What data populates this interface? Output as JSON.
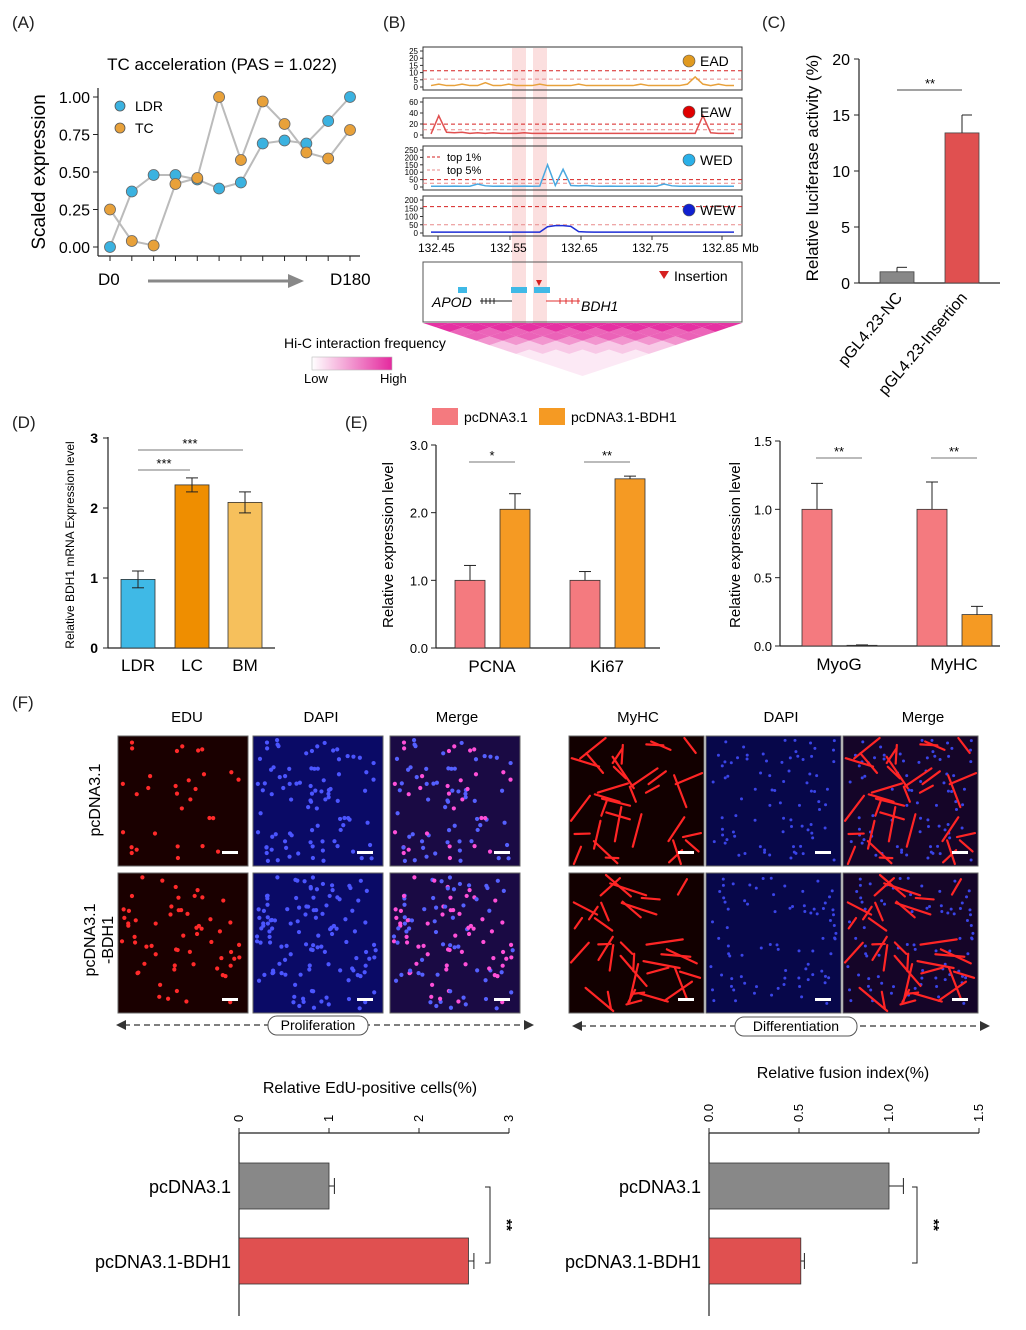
{
  "panel_labels": [
    "(A)",
    "(B)",
    "(C)",
    "(D)",
    "(E)",
    "(F)"
  ],
  "colors": {
    "ldr": "#3bb2e0",
    "tc": "#e8a13a",
    "grey": "#888888",
    "red": "#e05050",
    "pink": "#f47a7f",
    "orange": "#f59a23",
    "blue": "#3fb9e6",
    "lc": "#ef8e00",
    "bm": "#f6c05c",
    "dark_blue": "#1f2fd6",
    "hic": "#e4299e"
  },
  "chart_data": [
    {
      "type": "line",
      "panel": "A",
      "title": "TC acceleration (PAS = 1.022)",
      "xlabel": "",
      "ylabel": "Scaled expression",
      "x_start_label": "D0",
      "x_end_label": "D180",
      "ylim": [
        0,
        1.0
      ],
      "y_ticks": [
        "0.00",
        "0.25",
        "0.50",
        "0.75",
        "1.00"
      ],
      "legend": "top-left",
      "series": [
        {
          "name": "LDR",
          "values": [
            0.0,
            0.37,
            0.48,
            0.48,
            0.45,
            0.39,
            0.43,
            0.69,
            0.71,
            0.69,
            0.84,
            1.0
          ]
        },
        {
          "name": "TC",
          "values": [
            0.25,
            0.04,
            0.01,
            0.42,
            0.46,
            1.0,
            0.58,
            0.97,
            0.82,
            0.63,
            0.59,
            0.78
          ]
        }
      ]
    },
    {
      "type": "line",
      "panel": "B",
      "xlabel": "Mb",
      "x_ticks": [
        "132.45",
        "132.55",
        "132.65",
        "132.75",
        "132.85 Mb"
      ],
      "legend_lines": [
        "top 1%",
        "top 5%"
      ],
      "tracks": [
        {
          "name": "EAD",
          "y_ticks": [
            "0",
            "5",
            "10",
            "15",
            "20",
            "25"
          ],
          "ymax": 25,
          "values": [
            1,
            2,
            1,
            1,
            2,
            1,
            1,
            3,
            1,
            1,
            2,
            1,
            1,
            1,
            2,
            1,
            1,
            1,
            1,
            2,
            1,
            1,
            1,
            1,
            1,
            1,
            1,
            2,
            1,
            1,
            1,
            1,
            1,
            2,
            7,
            2,
            1,
            2,
            1,
            1
          ]
        },
        {
          "name": "EAW",
          "y_ticks": [
            "0",
            "20",
            "40",
            "60"
          ],
          "ymax": 60,
          "values": [
            2,
            35,
            5,
            4,
            5,
            3,
            4,
            3,
            4,
            3,
            3,
            3,
            4,
            3,
            3,
            3,
            3,
            3,
            3,
            3,
            3,
            3,
            3,
            3,
            3,
            3,
            3,
            3,
            3,
            3,
            3,
            3,
            3,
            3,
            3,
            35,
            4,
            3,
            3,
            3
          ]
        },
        {
          "name": "WED",
          "y_ticks": [
            "0",
            "50",
            "100",
            "150",
            "200",
            "250"
          ],
          "ymax": 250,
          "values": [
            5,
            5,
            5,
            6,
            5,
            5,
            20,
            8,
            5,
            6,
            5,
            5,
            6,
            5,
            6,
            150,
            10,
            120,
            10,
            8,
            10,
            6,
            5,
            6,
            5,
            5,
            5,
            6,
            5,
            5,
            20,
            8,
            5,
            5,
            6,
            5,
            5,
            5,
            5,
            5
          ]
        },
        {
          "name": "WEW",
          "y_ticks": [
            "0",
            "50",
            "100",
            "150",
            "200"
          ],
          "ymax": 200,
          "values": [
            5,
            5,
            5,
            5,
            5,
            5,
            5,
            5,
            5,
            5,
            5,
            5,
            5,
            5,
            5,
            38,
            45,
            45,
            40,
            8,
            6,
            5,
            5,
            5,
            5,
            5,
            5,
            5,
            5,
            5,
            5,
            5,
            5,
            5,
            5,
            5,
            5,
            5,
            5,
            5
          ]
        }
      ],
      "genes": [
        "APOD",
        "BDH1"
      ],
      "insertion_label": "Insertion",
      "hic_title": "Hi-C interaction frequency",
      "hic_low": "Low",
      "hic_high": "High"
    },
    {
      "type": "bar",
      "panel": "C",
      "ylabel": "Relative luciferase activity (%)",
      "categories": [
        "pGL4.23-NC",
        "pGL4.23-Insertion"
      ],
      "values": [
        1.0,
        13.4
      ],
      "errors": [
        0.4,
        1.6
      ],
      "ylim": [
        0,
        20
      ],
      "y_ticks": [
        "0",
        "5",
        "10",
        "15",
        "20"
      ],
      "significance": "**"
    },
    {
      "type": "bar",
      "panel": "D",
      "ylabel": "Relative BDH1 mRNA Expression level",
      "categories": [
        "LDR",
        "LC",
        "BM"
      ],
      "values": [
        0.98,
        2.33,
        2.08
      ],
      "errors": [
        0.12,
        0.1,
        0.15
      ],
      "ylim": [
        0,
        3
      ],
      "y_ticks": [
        "0",
        "1",
        "2",
        "3"
      ],
      "significance": [
        "***",
        "***"
      ]
    },
    {
      "type": "bar",
      "panel": "E",
      "legend": [
        "pcDNA3.1",
        "pcDNA3.1-BDH1"
      ],
      "ylabel": "Relative expression level",
      "groups": [
        {
          "categories": [
            "PCNA",
            "Ki67"
          ],
          "ylim": [
            0,
            3.0
          ],
          "y_ticks": [
            "0.0",
            "1.0",
            "2.0",
            "3.0"
          ],
          "series": [
            {
              "name": "pcDNA3.1",
              "values": [
                1.0,
                1.0
              ],
              "errors": [
                0.22,
                0.13
              ]
            },
            {
              "name": "pcDNA3.1-BDH1",
              "values": [
                2.05,
                2.5
              ],
              "errors": [
                0.23,
                0.04
              ]
            }
          ],
          "significance": [
            "*",
            "**"
          ]
        },
        {
          "categories": [
            "MyoG",
            "MyHC"
          ],
          "ylim": [
            0,
            1.5
          ],
          "y_ticks": [
            "0.0",
            "0.5",
            "1.0",
            "1.5"
          ],
          "series": [
            {
              "name": "pcDNA3.1",
              "values": [
                1.0,
                1.0
              ],
              "errors": [
                0.19,
                0.2
              ]
            },
            {
              "name": "pcDNA3.1-BDH1",
              "values": [
                0.005,
                0.23
              ],
              "errors": [
                0.003,
                0.06
              ]
            }
          ],
          "significance": [
            "**",
            "**"
          ]
        }
      ]
    },
    {
      "type": "bar",
      "panel": "F",
      "orientation": "horizontal",
      "title": "Relative EdU-positive cells(%)",
      "categories": [
        "pcDNA3.1",
        "pcDNA3.1-BDH1"
      ],
      "values": [
        1.0,
        2.55
      ],
      "errors": [
        0.06,
        0.06
      ],
      "ylim": [
        0,
        3
      ],
      "y_ticks": [
        "0",
        "1",
        "2",
        "3"
      ],
      "significance": "**"
    },
    {
      "type": "bar",
      "panel": "F",
      "orientation": "horizontal",
      "title": "Relative fusion index(%)",
      "categories": [
        "pcDNA3.1",
        "pcDNA3.1-BDH1"
      ],
      "values": [
        1.0,
        0.51
      ],
      "errors": [
        0.08,
        0.02
      ],
      "ylim": [
        0,
        1.5
      ],
      "y_ticks": [
        "0.0",
        "0.5",
        "1.0",
        "1.5"
      ],
      "significance": "**"
    }
  ],
  "microscopy": {
    "proliferation_headers": [
      "EDU",
      "DAPI",
      "Merge"
    ],
    "differentiation_headers": [
      "MyHC",
      "DAPI",
      "Merge"
    ],
    "row_labels": [
      "pcDNA3.1",
      "pcDNA3.1\n-BDH1"
    ],
    "proliferation_label": "Proliferation",
    "differentiation_label": "Differentiation"
  }
}
